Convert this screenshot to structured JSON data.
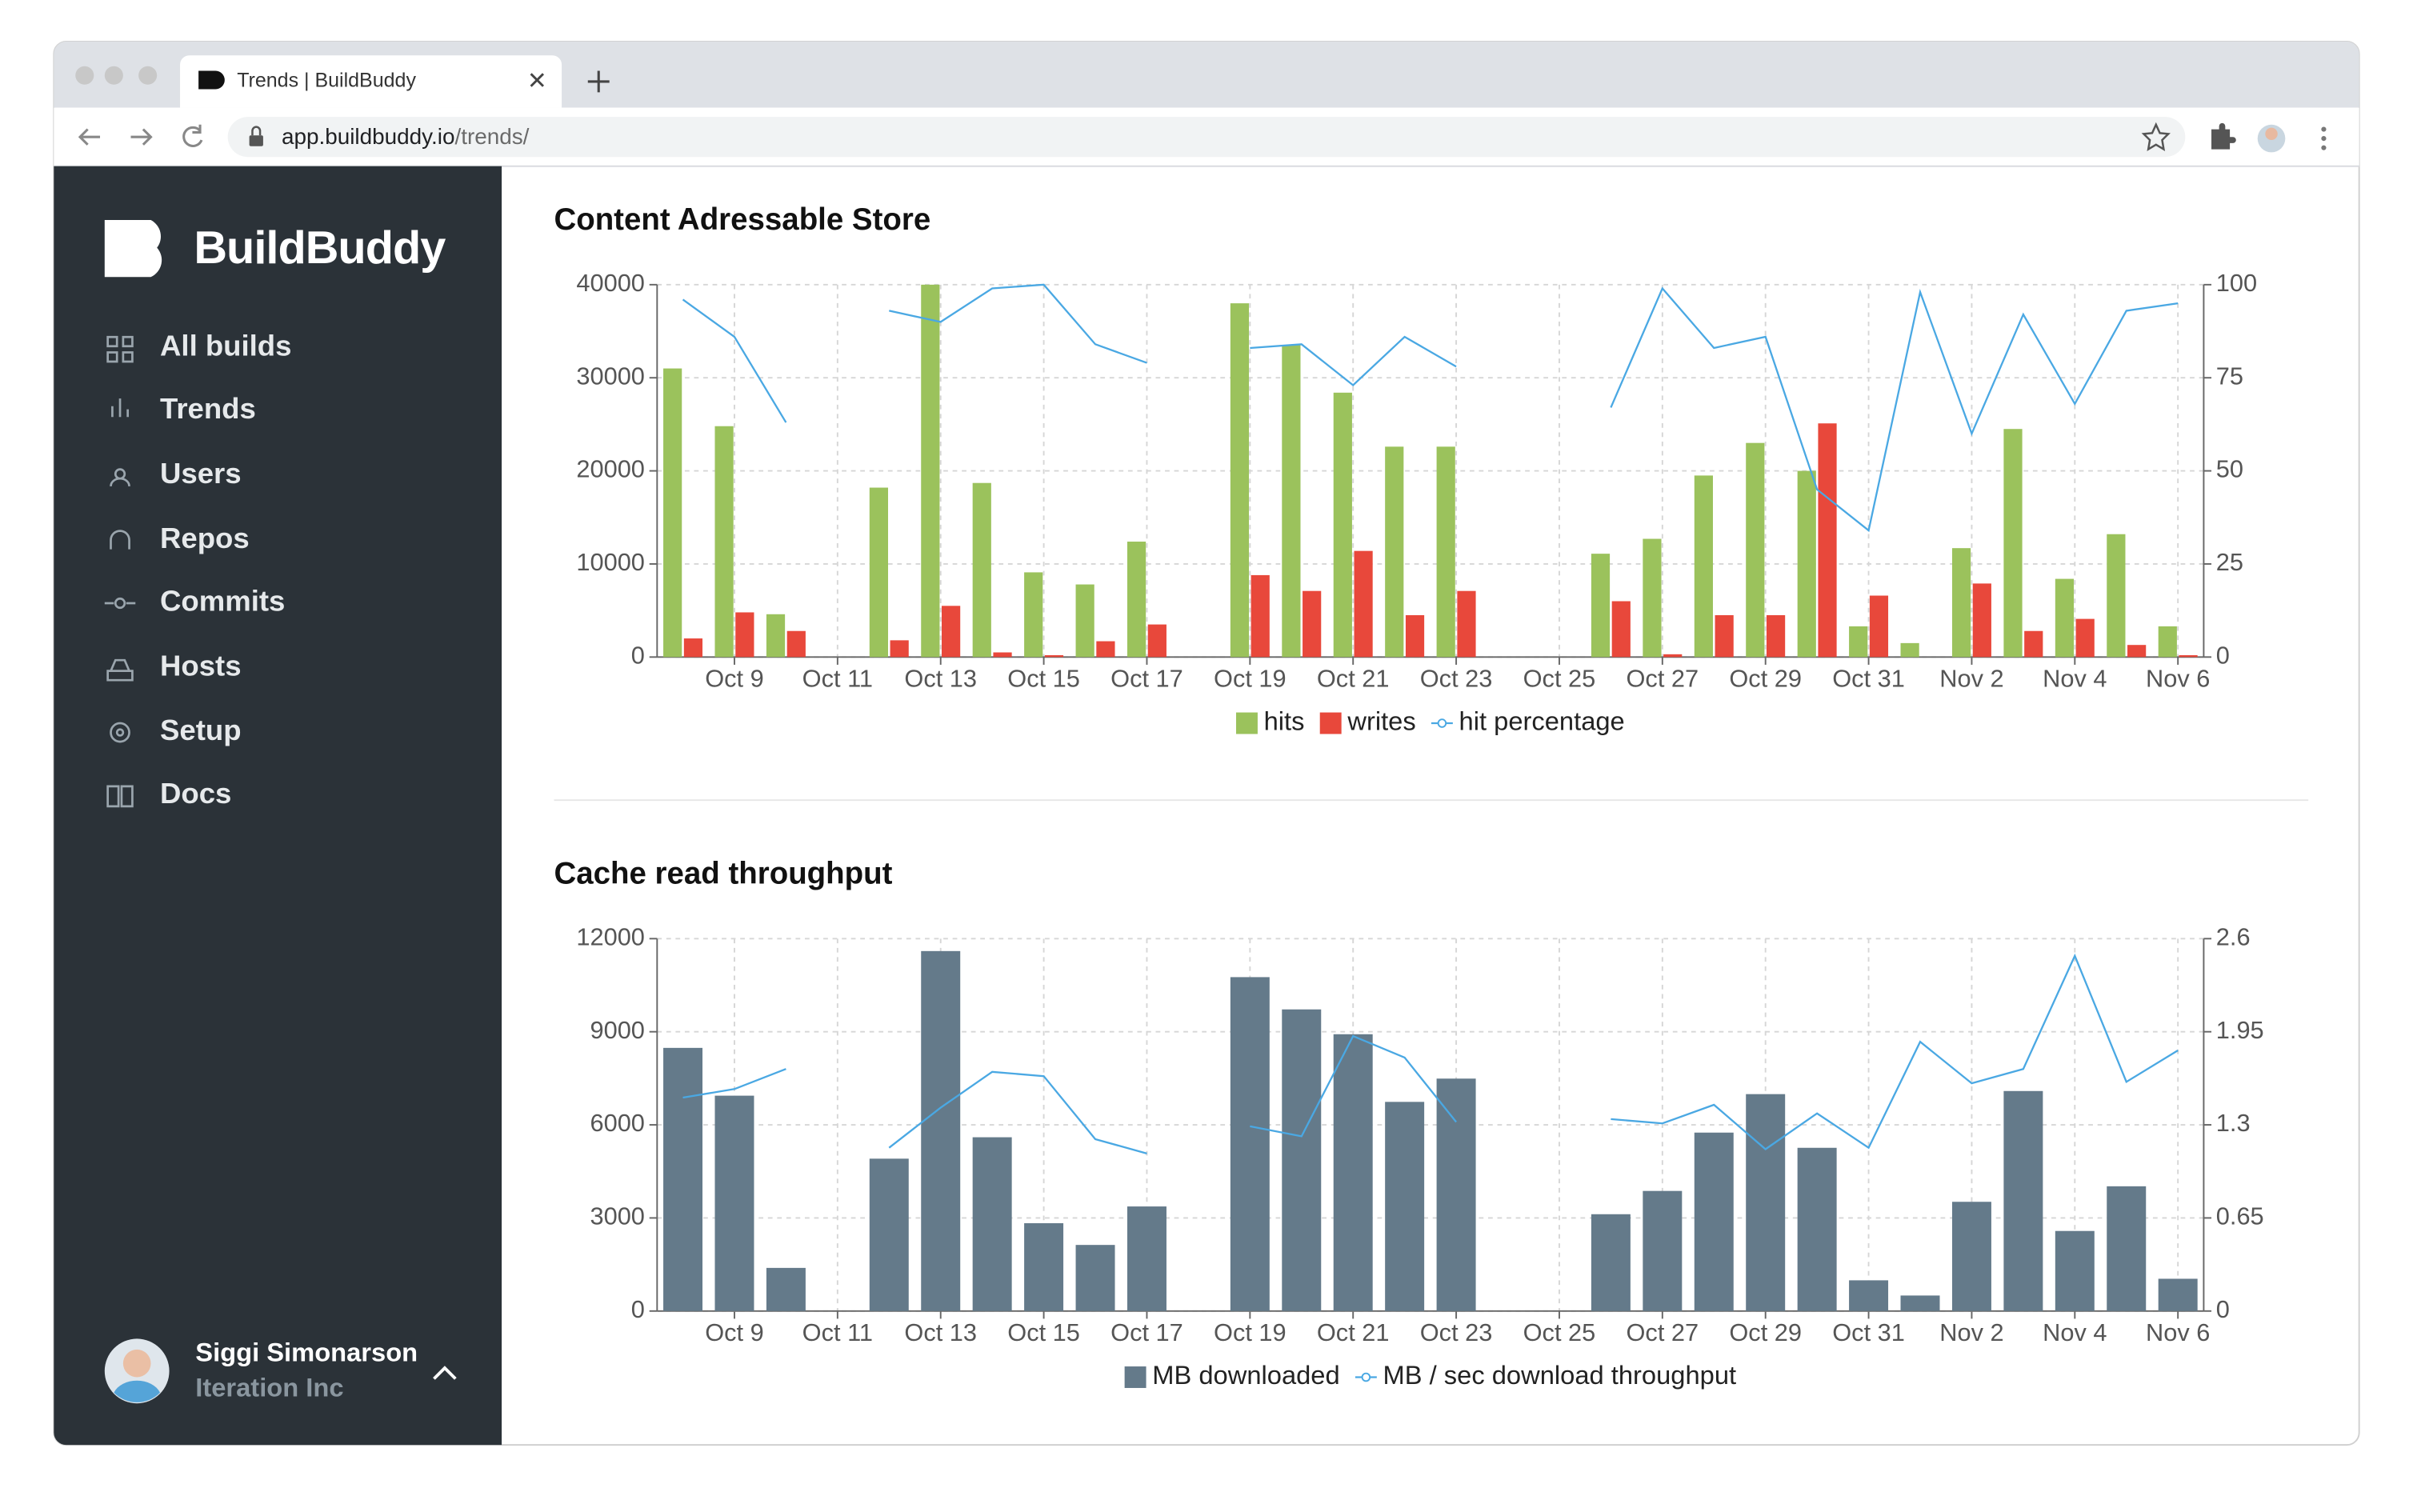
{
  "browser": {
    "tab_title": "Trends | BuildBuddy",
    "url_host": "app.buildbuddy.io",
    "url_path": "/trends/"
  },
  "sidebar": {
    "logo": "BuildBuddy",
    "nav": [
      "All builds",
      "Trends",
      "Users",
      "Repos",
      "Commits",
      "Hosts",
      "Setup",
      "Docs"
    ],
    "user": {
      "name": "Siggi Simonarson",
      "org": "Iteration Inc"
    }
  },
  "chart_data": [
    {
      "type": "bar",
      "title": "Content Adressable Store",
      "categories": [
        null,
        "Oct 9",
        null,
        "Oct 11",
        null,
        "Oct 13",
        null,
        "Oct 15",
        null,
        "Oct 17",
        null,
        "Oct 19",
        null,
        "Oct 21",
        null,
        "Oct 23",
        null,
        "Oct 25",
        null,
        "Oct 27",
        null,
        "Oct 29",
        null,
        "Oct 31",
        null,
        "Nov 2",
        null,
        "Nov 4",
        null,
        "Nov 6"
      ],
      "series": [
        {
          "name": "hits",
          "color": "#9bc25c",
          "values": [
            31000,
            24800,
            4600,
            null,
            18200,
            40000,
            18700,
            9100,
            7800,
            12400,
            null,
            38000,
            33500,
            28400,
            22600,
            22600,
            null,
            null,
            11100,
            12700,
            19500,
            23000,
            20000,
            3300,
            1500,
            11700,
            24500,
            8400,
            13200,
            3300
          ]
        },
        {
          "name": "writes",
          "color": "#e8483b",
          "values": [
            2000,
            4800,
            2800,
            null,
            1800,
            5500,
            500,
            200,
            1700,
            3500,
            null,
            8800,
            7100,
            11400,
            4500,
            7100,
            null,
            null,
            6000,
            300,
            4500,
            4500,
            25100,
            6600,
            0,
            7900,
            2800,
            4100,
            1300,
            200
          ]
        },
        {
          "name": "hit percentage",
          "color": "#4aa8e3",
          "axis": "y2",
          "values": [
            96,
            86,
            63,
            null,
            93,
            90,
            99,
            100,
            84,
            79,
            null,
            83,
            84,
            73,
            86,
            78,
            null,
            null,
            67,
            99,
            83,
            86,
            45,
            34,
            98,
            60,
            92,
            68,
            93,
            95
          ]
        }
      ],
      "ylim": [
        0,
        40000
      ],
      "yticks": [
        0,
        10000,
        20000,
        30000,
        40000
      ],
      "y2lim": [
        0,
        100
      ],
      "y2ticks": [
        0,
        25,
        50,
        75,
        100
      ],
      "grid": true,
      "legend": "bottom"
    },
    {
      "type": "bar",
      "title": "Cache read throughput",
      "categories": [
        null,
        "Oct 9",
        null,
        "Oct 11",
        null,
        "Oct 13",
        null,
        "Oct 15",
        null,
        "Oct 17",
        null,
        "Oct 19",
        null,
        "Oct 21",
        null,
        "Oct 23",
        null,
        "Oct 25",
        null,
        "Oct 27",
        null,
        "Oct 29",
        null,
        "Oct 31",
        null,
        "Nov 2",
        null,
        "Nov 4",
        null,
        "Nov 6"
      ],
      "series": [
        {
          "name": "MB downloaded",
          "color": "#647a8a",
          "values": [
            8480,
            6940,
            1390,
            null,
            4910,
            11600,
            5600,
            2830,
            2130,
            3370,
            null,
            10760,
            9720,
            8920,
            6740,
            7490,
            null,
            null,
            3120,
            3870,
            5750,
            6990,
            5260,
            990,
            500,
            3520,
            7090,
            2580,
            4020,
            1040
          ]
        },
        {
          "name": "MB / sec download throughput",
          "color": "#4aa8e3",
          "axis": "y2",
          "values": [
            1.49,
            1.55,
            1.69,
            null,
            1.14,
            1.42,
            1.67,
            1.64,
            1.2,
            1.1,
            null,
            1.29,
            1.22,
            1.92,
            1.77,
            1.32,
            null,
            null,
            1.34,
            1.31,
            1.44,
            1.13,
            1.38,
            1.14,
            1.88,
            1.59,
            1.69,
            2.48,
            1.6,
            1.82
          ]
        }
      ],
      "ylim": [
        0,
        12000
      ],
      "yticks": [
        0,
        3000,
        6000,
        9000,
        12000
      ],
      "y2lim": [
        0,
        2.6
      ],
      "y2ticks": [
        0,
        0.65,
        1.3,
        1.95,
        2.6
      ],
      "grid": true,
      "legend": "bottom"
    }
  ]
}
